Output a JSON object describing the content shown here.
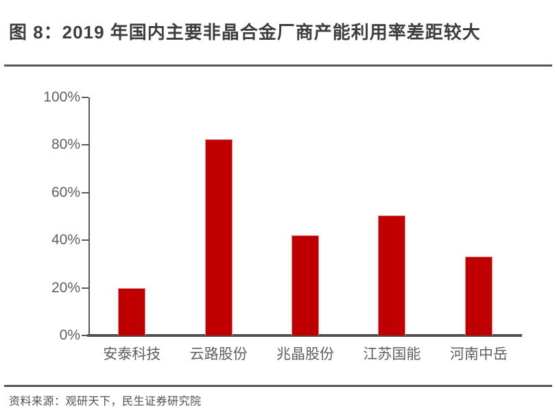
{
  "header": {
    "title": "图 8：2019 年国内主要非晶合金厂商产能利用率差距较大"
  },
  "footer": {
    "source": "资料来源：观研天下，民生证券研究院"
  },
  "chart_data": {
    "type": "bar",
    "title": "图 8：2019 年国内主要非晶合金厂商产能利用率差距较大",
    "categories": [
      "安泰科技",
      "云路股份",
      "兆晶股份",
      "江苏国能",
      "河南中岳"
    ],
    "values": [
      20,
      82.5,
      42,
      50.5,
      33
    ],
    "unit": "%",
    "xlabel": "",
    "ylabel": "",
    "ylim": [
      0,
      100
    ],
    "ytick_step": 20,
    "ytick_labels": [
      "100%",
      "80%",
      "60%",
      "40%",
      "20%",
      "0%"
    ],
    "grid": false,
    "legend": "none",
    "bar_color": "#c00000",
    "bar_border_color": "#d98a8a",
    "axis_color": "#595959",
    "label_color": "#5e5e5e"
  }
}
